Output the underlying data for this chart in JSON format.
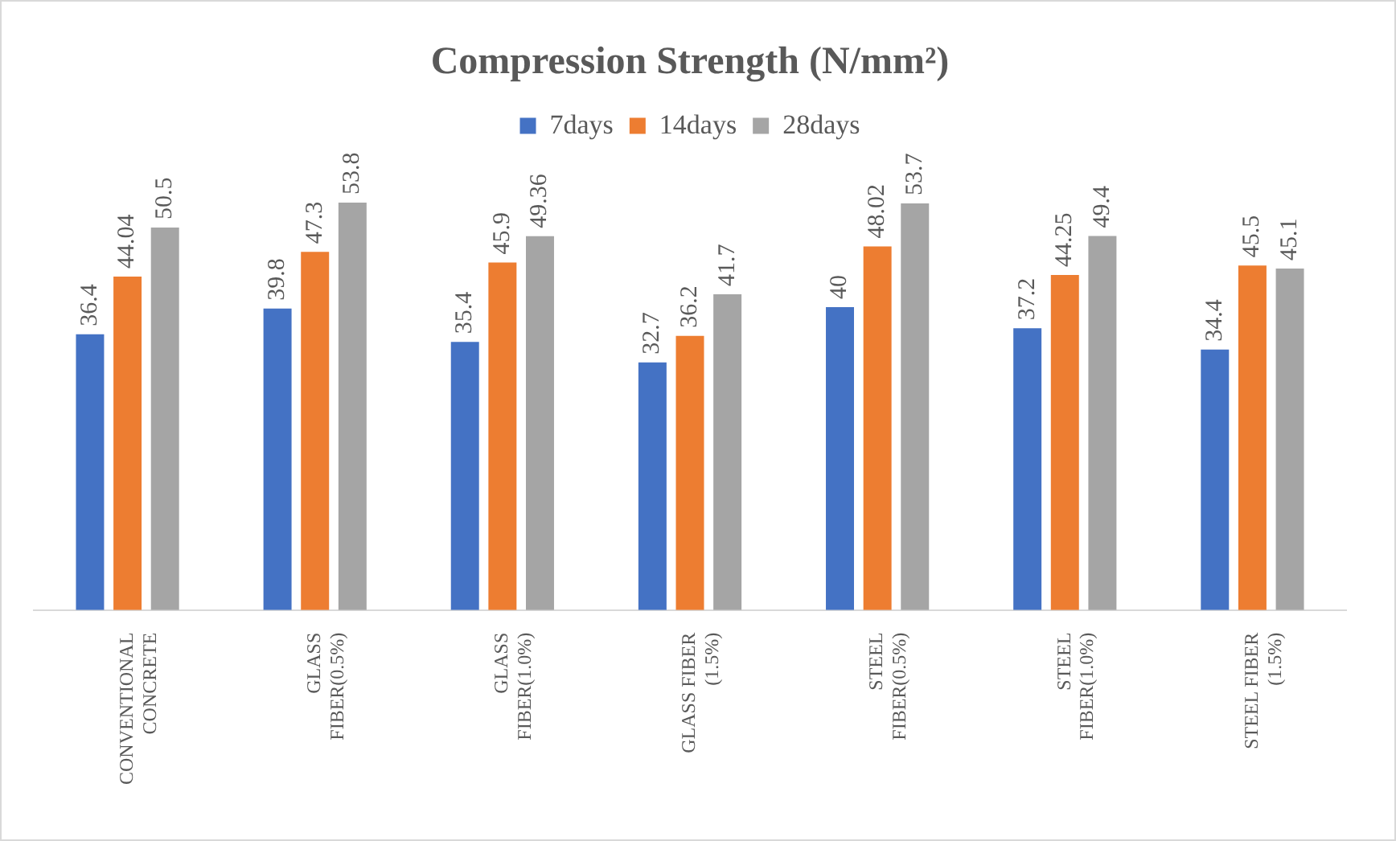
{
  "chart_data": {
    "type": "bar",
    "title": "Compression Strength (N/mm²)",
    "categories": [
      "CONVENTIONAL\nCONCRETE",
      "GLASS\nFIBER(0.5%)",
      "GLASS\nFIBER(1.0%)",
      "GLASS FIBER\n(1.5%)",
      "STEEL\nFIBER(0.5%)",
      "STEEL\nFIBER(1.0%)",
      "STEEL FIBER\n(1.5%)"
    ],
    "series": [
      {
        "name": "7days",
        "color": "#4472c4",
        "values": [
          36.4,
          39.8,
          35.4,
          32.7,
          40,
          37.2,
          34.4
        ]
      },
      {
        "name": "14days",
        "color": "#ed7d31",
        "values": [
          44.04,
          47.3,
          45.9,
          36.2,
          48.02,
          44.25,
          45.5
        ]
      },
      {
        "name": "28days",
        "color": "#a5a5a5",
        "values": [
          50.5,
          53.8,
          49.36,
          41.7,
          53.7,
          49.4,
          45.1
        ]
      }
    ],
    "data_labels": true,
    "legend": "top",
    "grid": false,
    "tick_labels": "x"
  }
}
